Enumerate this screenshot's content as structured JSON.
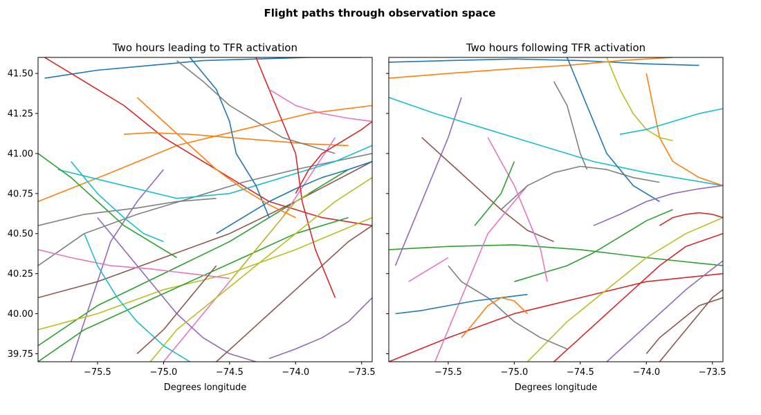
{
  "figure": {
    "suptitle": "Flight paths through observation space"
  },
  "colors": [
    "#1f77b4",
    "#ff7f0e",
    "#2ca02c",
    "#d62728",
    "#9467bd",
    "#8c564b",
    "#e377c2",
    "#7f7f7f",
    "#bcbd22",
    "#17becf"
  ],
  "chart_data": [
    {
      "type": "line",
      "title": "Two hours leading to TFR activation",
      "xlabel": "Degrees longitude",
      "ylabel": "",
      "xlim": [
        -75.95,
        -73.42
      ],
      "ylim": [
        39.7,
        41.6
      ],
      "xticks": [
        -75.5,
        -75.0,
        -74.5,
        -74.0,
        -73.5
      ],
      "xtick_labels": [
        "−75.5",
        "−75.0",
        "−74.5",
        "−74.0",
        "−73.5"
      ],
      "yticks": [
        39.75,
        40.0,
        40.25,
        40.5,
        40.75,
        41.0,
        41.25,
        41.5
      ],
      "ytick_labels": [
        "39.75",
        "40.00",
        "40.25",
        "40.50",
        "40.75",
        "41.00",
        "41.25",
        "41.50"
      ],
      "grid": false,
      "series": [
        {
          "x": [
            -75.9,
            -75.5,
            -75.1,
            -74.7,
            -74.3,
            -73.9,
            -73.5
          ],
          "y": [
            41.47,
            41.52,
            41.55,
            41.58,
            41.59,
            41.6,
            41.6
          ]
        },
        {
          "x": [
            -75.95,
            -75.4,
            -74.9,
            -74.4,
            -73.9,
            -73.42
          ],
          "y": [
            40.7,
            40.88,
            41.05,
            41.15,
            41.25,
            41.3
          ]
        },
        {
          "x": [
            -75.95,
            -75.5,
            -75.0,
            -74.5,
            -74.0,
            -73.6
          ],
          "y": [
            39.8,
            40.05,
            40.25,
            40.45,
            40.7,
            40.9
          ]
        },
        {
          "x": [
            -75.9,
            -75.6,
            -75.3,
            -75.0,
            -74.6,
            -74.2,
            -73.8,
            -73.42
          ],
          "y": [
            41.6,
            41.45,
            41.3,
            41.1,
            40.9,
            40.7,
            40.6,
            40.55
          ]
        },
        {
          "x": [
            -75.7,
            -75.6,
            -75.5,
            -75.4,
            -75.2,
            -75.0
          ],
          "y": [
            39.7,
            39.95,
            40.2,
            40.45,
            40.7,
            40.9
          ]
        },
        {
          "x": [
            -75.95,
            -75.5,
            -75.0,
            -74.5,
            -74.0,
            -73.42
          ],
          "y": [
            40.1,
            40.2,
            40.35,
            40.5,
            40.7,
            40.95
          ]
        },
        {
          "x": [
            -75.0,
            -74.7,
            -74.4,
            -74.1,
            -73.9,
            -73.7
          ],
          "y": [
            39.7,
            40.0,
            40.3,
            40.6,
            40.85,
            41.1
          ]
        },
        {
          "x": [
            -75.95,
            -75.6,
            -75.2,
            -74.8,
            -74.4,
            -74.0,
            -73.42
          ],
          "y": [
            40.3,
            40.5,
            40.62,
            40.72,
            40.82,
            40.9,
            41.0
          ]
        },
        {
          "x": [
            -75.95,
            -75.5,
            -75.0,
            -74.5,
            -74.0,
            -73.42
          ],
          "y": [
            39.9,
            40.0,
            40.15,
            40.25,
            40.4,
            40.6
          ]
        },
        {
          "x": [
            -75.8,
            -75.3,
            -74.9,
            -74.5,
            -74.1,
            -73.7,
            -73.42
          ],
          "y": [
            40.9,
            40.8,
            40.72,
            40.75,
            40.85,
            40.95,
            41.05
          ]
        },
        {
          "x": [
            -74.8,
            -74.6,
            -74.5,
            -74.45,
            -74.3,
            -74.2
          ],
          "y": [
            41.6,
            41.4,
            41.2,
            41.0,
            40.8,
            40.6
          ]
        },
        {
          "x": [
            -75.3,
            -75.1,
            -74.8,
            -74.5,
            -74.2,
            -73.9,
            -73.6
          ],
          "y": [
            41.12,
            41.13,
            41.12,
            41.1,
            41.08,
            41.06,
            41.05
          ]
        },
        {
          "x": [
            -75.95,
            -75.6,
            -75.2,
            -74.8,
            -74.4,
            -74.0,
            -73.6
          ],
          "y": [
            39.7,
            39.9,
            40.05,
            40.2,
            40.35,
            40.5,
            40.6
          ]
        },
        {
          "x": [
            -74.3,
            -74.15,
            -74.0,
            -73.95,
            -73.85,
            -73.7
          ],
          "y": [
            41.6,
            41.3,
            41.0,
            40.7,
            40.4,
            40.1
          ]
        },
        {
          "x": [
            -75.5,
            -75.3,
            -75.1,
            -74.9,
            -74.7,
            -74.5,
            -74.3
          ],
          "y": [
            40.6,
            40.4,
            40.2,
            40.0,
            39.85,
            39.75,
            39.7
          ]
        },
        {
          "x": [
            -74.6,
            -74.4,
            -74.2,
            -74.0,
            -73.8,
            -73.6,
            -73.42
          ],
          "y": [
            39.7,
            39.85,
            40.0,
            40.15,
            40.3,
            40.45,
            40.55
          ]
        },
        {
          "x": [
            -75.95,
            -75.7,
            -75.4,
            -75.1,
            -74.8,
            -74.5
          ],
          "y": [
            40.4,
            40.35,
            40.3,
            40.28,
            40.25,
            40.22
          ]
        },
        {
          "x": [
            -74.9,
            -74.7,
            -74.5,
            -74.3,
            -74.1,
            -73.9,
            -73.7
          ],
          "y": [
            41.58,
            41.45,
            41.3,
            41.2,
            41.1,
            41.05,
            41.0
          ]
        },
        {
          "x": [
            -75.1,
            -74.9,
            -74.6,
            -74.3,
            -74.0,
            -73.7,
            -73.42
          ],
          "y": [
            39.7,
            39.9,
            40.1,
            40.3,
            40.5,
            40.7,
            40.85
          ]
        },
        {
          "x": [
            -75.6,
            -75.5,
            -75.35,
            -75.2,
            -75.0,
            -74.8
          ],
          "y": [
            40.5,
            40.3,
            40.1,
            39.95,
            39.8,
            39.7
          ]
        },
        {
          "x": [
            -73.42,
            -73.6,
            -73.8,
            -74.0,
            -74.2,
            -74.4,
            -74.6
          ],
          "y": [
            40.95,
            40.9,
            40.85,
            40.78,
            40.7,
            40.6,
            40.5
          ]
        },
        {
          "x": [
            -75.2,
            -75.0,
            -74.8,
            -74.6,
            -74.4,
            -74.2,
            -74.0
          ],
          "y": [
            41.35,
            41.2,
            41.05,
            40.9,
            40.78,
            40.68,
            40.6
          ]
        },
        {
          "x": [
            -75.95,
            -75.7,
            -75.5,
            -75.3,
            -75.1,
            -74.9
          ],
          "y": [
            41.0,
            40.85,
            40.7,
            40.55,
            40.45,
            40.35
          ]
        },
        {
          "x": [
            -74.0,
            -73.9,
            -73.8,
            -73.7,
            -73.6,
            -73.5,
            -73.42
          ],
          "y": [
            40.75,
            40.9,
            41.0,
            41.05,
            41.1,
            41.15,
            41.2
          ]
        },
        {
          "x": [
            -73.42,
            -73.6,
            -73.8,
            -74.0,
            -74.2
          ],
          "y": [
            40.1,
            39.95,
            39.85,
            39.78,
            39.72
          ]
        },
        {
          "x": [
            -75.2,
            -75.0,
            -74.85,
            -74.7,
            -74.6
          ],
          "y": [
            39.75,
            39.9,
            40.05,
            40.2,
            40.3
          ]
        },
        {
          "x": [
            -74.2,
            -74.0,
            -73.8,
            -73.6,
            -73.42
          ],
          "y": [
            41.4,
            41.3,
            41.25,
            41.22,
            41.2
          ]
        },
        {
          "x": [
            -75.95,
            -75.6,
            -75.2,
            -74.9,
            -74.6
          ],
          "y": [
            40.55,
            40.62,
            40.66,
            40.7,
            40.72
          ]
        },
        {
          "x": [
            -74.5,
            -74.35,
            -74.2,
            -74.1,
            -74.0,
            -73.9
          ],
          "y": [
            40.2,
            40.35,
            40.5,
            40.6,
            40.7,
            40.75
          ]
        },
        {
          "x": [
            -75.7,
            -75.5,
            -75.3,
            -75.15,
            -75.0
          ],
          "y": [
            40.95,
            40.75,
            40.6,
            40.5,
            40.45
          ]
        }
      ]
    },
    {
      "type": "line",
      "title": "Two hours following TFR activation",
      "xlabel": "Degrees longitude",
      "ylabel": "",
      "xlim": [
        -75.95,
        -73.42
      ],
      "ylim": [
        39.7,
        41.6
      ],
      "xticks": [
        -75.5,
        -75.0,
        -74.5,
        -74.0,
        -73.5
      ],
      "xtick_labels": [
        "−75.5",
        "−75.0",
        "−74.5",
        "−74.0",
        "−73.5"
      ],
      "yticks": [
        39.75,
        40.0,
        40.25,
        40.5,
        40.75,
        41.0,
        41.25,
        41.5
      ],
      "ytick_labels": [
        "39.75",
        "40.00",
        "40.25",
        "40.50",
        "40.75",
        "41.00",
        "41.25",
        "41.50"
      ],
      "grid": false,
      "series": [
        {
          "x": [
            -75.95,
            -75.5,
            -75.0,
            -74.5,
            -74.0,
            -73.6
          ],
          "y": [
            41.57,
            41.58,
            41.59,
            41.58,
            41.56,
            41.55
          ]
        },
        {
          "x": [
            -75.95,
            -75.5,
            -75.0,
            -74.6,
            -74.2,
            -73.8
          ],
          "y": [
            41.47,
            41.5,
            41.53,
            41.55,
            41.58,
            41.6
          ]
        },
        {
          "x": [
            -75.95,
            -75.5,
            -75.0,
            -74.5,
            -74.0,
            -73.42
          ],
          "y": [
            40.4,
            40.42,
            40.43,
            40.4,
            40.35,
            40.3
          ]
        },
        {
          "x": [
            -75.95,
            -75.5,
            -75.0,
            -74.5,
            -74.0,
            -73.42
          ],
          "y": [
            39.7,
            39.85,
            40.0,
            40.1,
            40.2,
            40.25
          ]
        },
        {
          "x": [
            -75.4,
            -75.5,
            -75.6,
            -75.7,
            -75.8,
            -75.9
          ],
          "y": [
            41.35,
            41.1,
            40.9,
            40.7,
            40.5,
            40.3
          ]
        },
        {
          "x": [
            -75.7,
            -75.5,
            -75.3,
            -75.1,
            -74.9,
            -74.7
          ],
          "y": [
            41.1,
            40.95,
            40.8,
            40.65,
            40.52,
            40.45
          ]
        },
        {
          "x": [
            -75.6,
            -75.5,
            -75.4,
            -75.3,
            -75.2,
            -75.0,
            -74.9
          ],
          "y": [
            39.7,
            39.9,
            40.1,
            40.3,
            40.5,
            40.7,
            40.8
          ]
        },
        {
          "x": [
            -75.1,
            -74.9,
            -74.7,
            -74.5,
            -74.3,
            -74.1,
            -73.9
          ],
          "y": [
            40.65,
            40.8,
            40.88,
            40.92,
            40.9,
            40.85,
            40.82
          ]
        },
        {
          "x": [
            -74.9,
            -74.6,
            -74.3,
            -74.0,
            -73.7,
            -73.42
          ],
          "y": [
            39.7,
            39.95,
            40.15,
            40.35,
            40.5,
            40.6
          ]
        },
        {
          "x": [
            -75.95,
            -75.6,
            -75.2,
            -74.8,
            -74.4,
            -74.0,
            -73.42
          ],
          "y": [
            41.35,
            41.25,
            41.15,
            41.05,
            40.95,
            40.88,
            40.8
          ]
        },
        {
          "x": [
            -74.6,
            -74.5,
            -74.4,
            -74.3,
            -74.1,
            -73.9
          ],
          "y": [
            41.6,
            41.4,
            41.2,
            41.0,
            40.8,
            40.7
          ]
        },
        {
          "x": [
            -74.0,
            -73.95,
            -73.9,
            -73.8,
            -73.6,
            -73.42
          ],
          "y": [
            41.5,
            41.3,
            41.1,
            40.95,
            40.85,
            40.8
          ]
        },
        {
          "x": [
            -75.0,
            -74.8,
            -74.6,
            -74.4,
            -74.2,
            -74.0,
            -73.8
          ],
          "y": [
            40.2,
            40.25,
            40.3,
            40.38,
            40.48,
            40.58,
            40.65
          ]
        },
        {
          "x": [
            -74.7,
            -74.5,
            -74.3,
            -74.1,
            -73.9,
            -73.7,
            -73.42
          ],
          "y": [
            39.7,
            39.85,
            40.0,
            40.15,
            40.3,
            40.42,
            40.5
          ]
        },
        {
          "x": [
            -74.3,
            -74.1,
            -73.9,
            -73.7,
            -73.5,
            -73.42
          ],
          "y": [
            39.7,
            39.85,
            40.0,
            40.15,
            40.28,
            40.33
          ]
        },
        {
          "x": [
            -73.9,
            -73.8,
            -73.7,
            -73.6,
            -73.5,
            -73.42
          ],
          "y": [
            39.7,
            39.8,
            39.9,
            40.0,
            40.1,
            40.15
          ]
        },
        {
          "x": [
            -75.2,
            -75.1,
            -75.0,
            -74.9,
            -74.8,
            -74.75
          ],
          "y": [
            41.1,
            40.95,
            40.8,
            40.6,
            40.4,
            40.2
          ]
        },
        {
          "x": [
            -75.5,
            -75.4,
            -75.2,
            -75.0,
            -74.8,
            -74.6
          ],
          "y": [
            40.3,
            40.2,
            40.1,
            39.95,
            39.85,
            39.78
          ]
        },
        {
          "x": [
            -74.3,
            -74.2,
            -74.1,
            -74.0,
            -73.9,
            -73.8
          ],
          "y": [
            41.6,
            41.4,
            41.25,
            41.15,
            41.1,
            41.08
          ]
        },
        {
          "x": [
            -74.2,
            -74.0,
            -73.8,
            -73.6,
            -73.42
          ],
          "y": [
            41.12,
            41.15,
            41.2,
            41.25,
            41.28
          ]
        },
        {
          "x": [
            -75.9,
            -75.7,
            -75.5,
            -75.3,
            -75.1,
            -74.9
          ],
          "y": [
            40.0,
            40.02,
            40.05,
            40.08,
            40.1,
            40.12
          ]
        },
        {
          "x": [
            -75.4,
            -75.3,
            -75.2,
            -75.1,
            -75.0,
            -74.9
          ],
          "y": [
            39.85,
            39.95,
            40.05,
            40.1,
            40.08,
            40.0
          ]
        },
        {
          "x": [
            -75.3,
            -75.2,
            -75.1,
            -75.05,
            -75.0
          ],
          "y": [
            40.55,
            40.65,
            40.75,
            40.85,
            40.95
          ]
        },
        {
          "x": [
            -73.9,
            -73.8,
            -73.7,
            -73.6,
            -73.5,
            -73.42
          ],
          "y": [
            40.55,
            40.6,
            40.62,
            40.63,
            40.62,
            40.6
          ]
        },
        {
          "x": [
            -74.4,
            -74.2,
            -74.0,
            -73.8,
            -73.6,
            -73.42
          ],
          "y": [
            40.55,
            40.62,
            40.7,
            40.75,
            40.78,
            40.8
          ]
        },
        {
          "x": [
            -74.0,
            -73.9,
            -73.75,
            -73.6,
            -73.42
          ],
          "y": [
            39.75,
            39.85,
            39.95,
            40.05,
            40.1
          ]
        },
        {
          "x": [
            -75.8,
            -75.7,
            -75.6,
            -75.5
          ],
          "y": [
            40.2,
            40.25,
            40.3,
            40.35
          ]
        },
        {
          "x": [
            -74.7,
            -74.6,
            -74.55,
            -74.5,
            -74.45
          ],
          "y": [
            41.45,
            41.3,
            41.15,
            41.0,
            40.9
          ]
        }
      ]
    }
  ]
}
